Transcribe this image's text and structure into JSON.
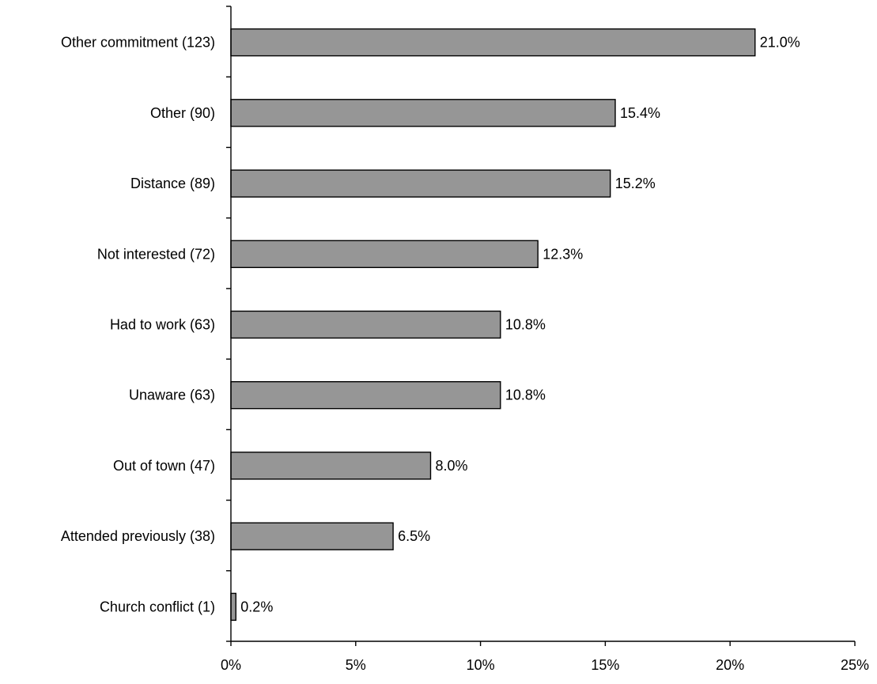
{
  "chart_data": {
    "type": "bar",
    "orientation": "horizontal",
    "title": "",
    "xlabel": "",
    "ylabel": "",
    "categories": [
      "Other commitment (123)",
      "Other (90)",
      "Distance (89)",
      "Not interested (72)",
      "Had to work (63)",
      "Unaware (63)",
      "Out of town (47)",
      "Attended previously (38)",
      "Church conflict (1)"
    ],
    "values": [
      21.0,
      15.4,
      15.2,
      12.3,
      10.8,
      10.8,
      8.0,
      6.5,
      0.2
    ],
    "value_labels": [
      "21.0%",
      "15.4%",
      "15.2%",
      "12.3%",
      "10.8%",
      "10.8%",
      "8.0%",
      "6.5%",
      "0.2%"
    ],
    "xlim": [
      0,
      25
    ],
    "xticks": [
      0,
      5,
      10,
      15,
      20,
      25
    ],
    "xtick_labels": [
      "0%",
      "5%",
      "10%",
      "15%",
      "20%",
      "25%"
    ],
    "bar_color": "#969696",
    "bar_edge_color": "#000000",
    "grid": false,
    "legend": "none"
  }
}
